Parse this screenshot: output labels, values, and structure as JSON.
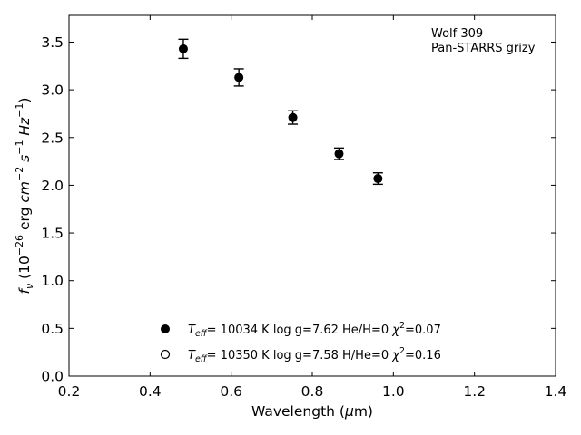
{
  "chart_data": {
    "type": "scatter",
    "xlabel": "Wavelength",
    "xlabel_unit": "μm",
    "ylabel_prefix": "f",
    "ylabel_sub": "ν",
    "ylabel_unit_text": "erg",
    "xlim": [
      0.2,
      1.4
    ],
    "ylim": [
      0.0,
      3.78
    ],
    "xticks": [
      "0.2",
      "0.4",
      "0.6",
      "0.8",
      "1.0",
      "1.2",
      "1.4"
    ],
    "yticks": [
      "0.0",
      "0.5",
      "1.0",
      "1.5",
      "2.0",
      "2.5",
      "3.0",
      "3.5"
    ],
    "annotation": [
      "Wolf 309",
      "Pan-STARRS grizy"
    ],
    "series": [
      {
        "style": "filled",
        "points": [
          {
            "x": 0.482,
            "y": 3.43,
            "err": 0.1
          },
          {
            "x": 0.619,
            "y": 3.13,
            "err": 0.09
          },
          {
            "x": 0.752,
            "y": 2.71,
            "err": 0.07
          },
          {
            "x": 0.866,
            "y": 2.33,
            "err": 0.06
          },
          {
            "x": 0.962,
            "y": 2.07,
            "err": 0.06
          }
        ],
        "legend": {
          "teff_label": "T",
          "teff_sub": "eff",
          "teff_value": "= 10034 K",
          "logg": "log g=7.62",
          "comp": "He/H=0",
          "chi_value": "=0.07"
        }
      },
      {
        "style": "open",
        "points": [],
        "legend": {
          "teff_label": "T",
          "teff_sub": "eff",
          "teff_value": "= 10350 K",
          "logg": "log g=7.58",
          "comp": "H/He=0",
          "chi_value": "=0.16"
        }
      }
    ],
    "grid": false,
    "legend_position": "bottom-center"
  }
}
